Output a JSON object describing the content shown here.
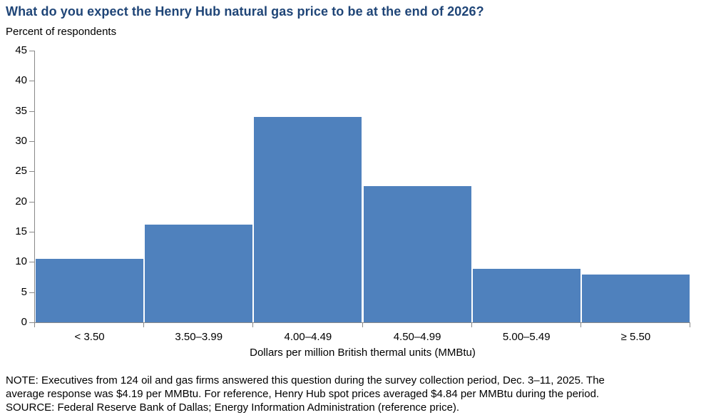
{
  "header": {
    "title": "What do you expect the Henry Hub natural gas price to be at the end of 2026?",
    "subtitle": "Percent of respondents"
  },
  "chart_data": {
    "type": "bar",
    "title": "What do you expect the Henry Hub natural gas price to be at the end of 2026?",
    "categories": [
      "< 3.50",
      "3.50–3.99",
      "4.00–4.49",
      "4.50–4.99",
      "5.00–5.49",
      "≥ 5.50"
    ],
    "values": [
      10.5,
      16.2,
      34.0,
      22.6,
      8.8,
      7.9
    ],
    "xlabel": "Dollars per million British thermal units (MMBtu)",
    "ylabel": "Percent of respondents",
    "ylim": [
      0,
      45
    ],
    "ytick_step": 5,
    "grid": false,
    "legend": false,
    "bar_color": "#4F81BD",
    "axis_color": "#898989"
  },
  "footer": {
    "note_line1": "NOTE: Executives from 124 oil and gas firms answered this question during the survey collection period, Dec. 3–11, 2025. The",
    "note_line2": "average response was $4.19 per MMBtu. For reference, Henry Hub spot prices averaged $4.84 per MMBtu during the period.",
    "source": "SOURCE: Federal Reserve Bank of Dallas; Energy Information Administration (reference price)."
  },
  "colors": {
    "title_text": "#1F4577",
    "bar": "#4F81BD",
    "axis": "#898989",
    "text": "#000000"
  }
}
